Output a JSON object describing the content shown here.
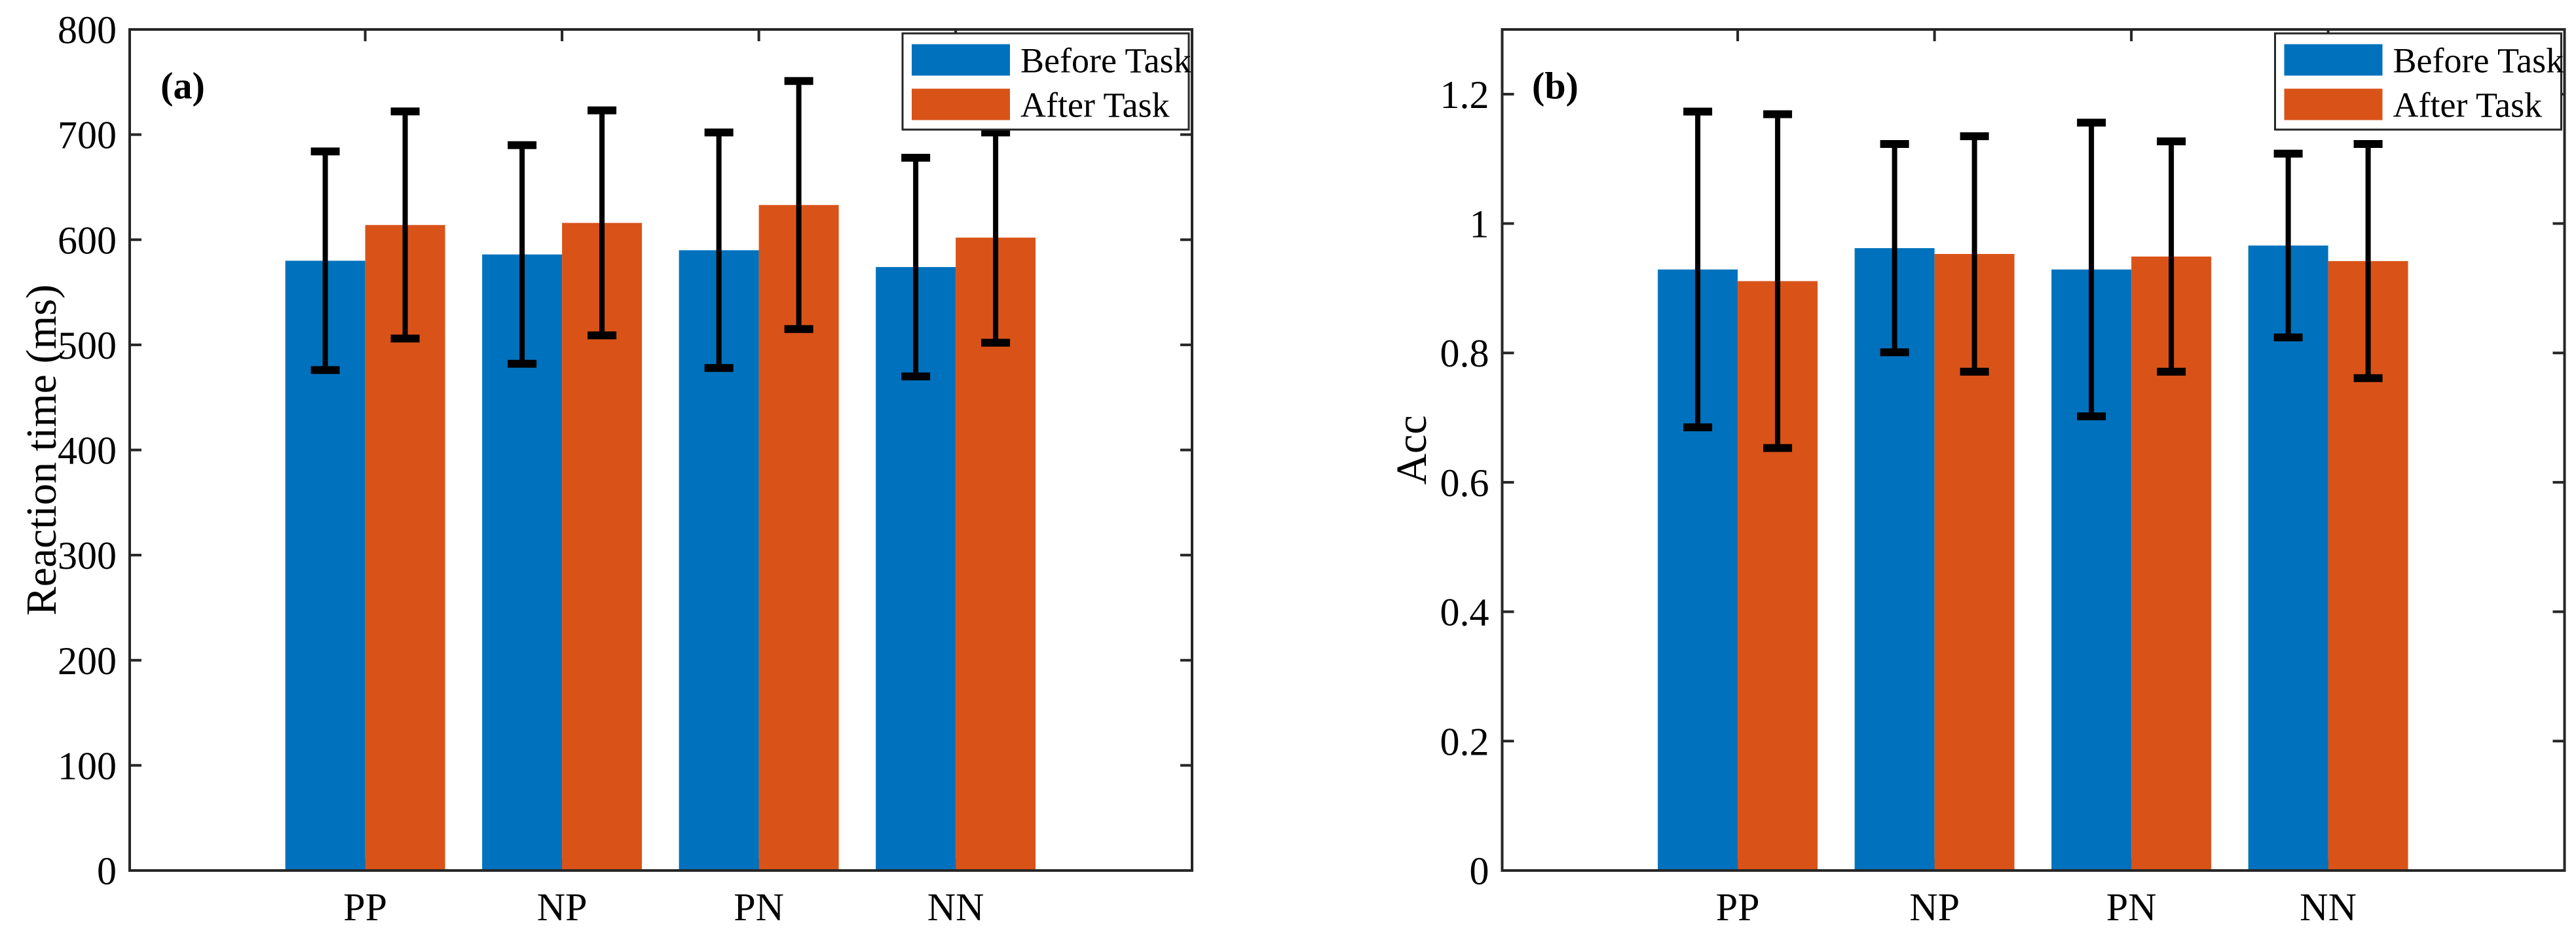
{
  "figure": {
    "background": "#FFFFFF"
  },
  "colors": {
    "before_task": "#0072BD",
    "after_task": "#D95319",
    "axis": "#262626",
    "error_bar": "#000000",
    "text": "#000000",
    "legend_border": "#262626",
    "legend_background": "#FFFFFF"
  },
  "legend": {
    "items": [
      {
        "label": "Before Task",
        "color": "#0072BD",
        "swatch": "blue-legend-swatch"
      },
      {
        "label": "After Task",
        "color": "#D95319",
        "swatch": "orange-legend-swatch"
      }
    ],
    "position": "top-right-inside"
  },
  "chart_data": [
    {
      "id": "a",
      "type": "bar",
      "panel_label": "(a)",
      "title": "",
      "xlabel": "",
      "ylabel": "Reaction time (ms)",
      "categories": [
        "PP",
        "NP",
        "PN",
        "NN"
      ],
      "series": [
        {
          "name": "Before Task",
          "color": "#0072BD",
          "values": [
            580,
            586,
            590,
            574
          ],
          "errors": [
            104,
            104,
            112,
            104
          ]
        },
        {
          "name": "After Task",
          "color": "#D95319",
          "values": [
            614,
            616,
            633,
            602
          ],
          "errors": [
            108,
            107,
            118,
            100
          ]
        }
      ],
      "ylim": [
        0,
        800
      ],
      "yticks": [
        0,
        100,
        200,
        300,
        400,
        500,
        600,
        700,
        800
      ],
      "ytick_labels": [
        "0",
        "100",
        "200",
        "300",
        "400",
        "500",
        "600",
        "700",
        "800"
      ],
      "grid": false,
      "error_bars": "symmetric",
      "legend_position": "top-right"
    },
    {
      "id": "b",
      "type": "bar",
      "panel_label": "(b)",
      "title": "",
      "xlabel": "",
      "ylabel": "Acc",
      "categories": [
        "PP",
        "NP",
        "PN",
        "NN"
      ],
      "series": [
        {
          "name": "Before Task",
          "color": "#0072BD",
          "values": [
            0.929,
            0.962,
            0.929,
            0.966
          ],
          "errors": [
            0.244,
            0.161,
            0.227,
            0.142
          ]
        },
        {
          "name": "After Task",
          "color": "#D95319",
          "values": [
            0.911,
            0.953,
            0.949,
            0.942
          ],
          "errors": [
            0.258,
            0.182,
            0.178,
            0.181
          ]
        }
      ],
      "ylim": [
        0,
        1.3
      ],
      "yticks": [
        0,
        0.2,
        0.4,
        0.6,
        0.8,
        1,
        1.2
      ],
      "ytick_labels": [
        "0",
        "0.2",
        "0.4",
        "0.6",
        "0.8",
        "1",
        "1.2"
      ],
      "grid": false,
      "error_bars": "symmetric",
      "legend_position": "top-right"
    }
  ]
}
